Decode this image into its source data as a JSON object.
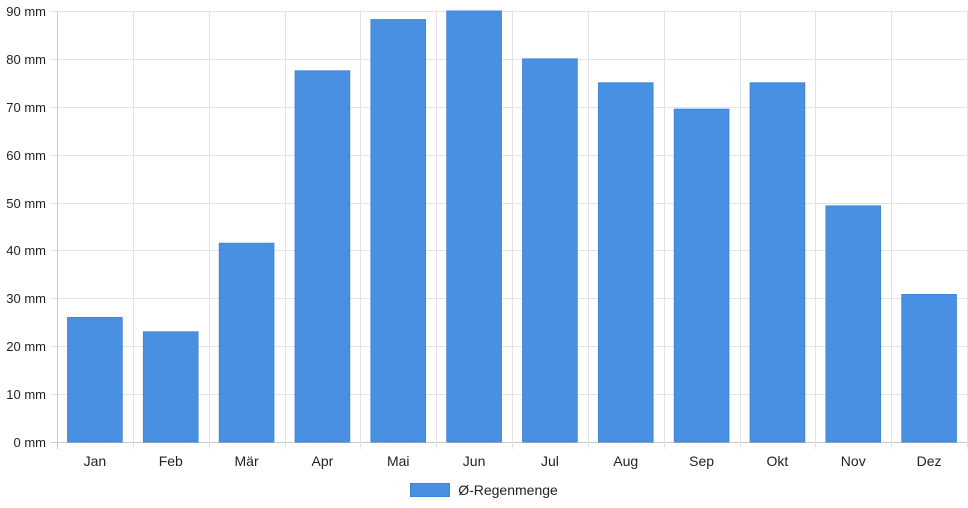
{
  "colors": {
    "bar": "#4a90e2",
    "bar_border": "#4185d6",
    "grid": "#e3e3e3",
    "axis": "#c8c8c8",
    "text": "#222222"
  },
  "chart_data": {
    "type": "bar",
    "title": "",
    "xlabel": "",
    "ylabel": "",
    "categories": [
      "Jan",
      "Feb",
      "Mär",
      "Apr",
      "Mai",
      "Jun",
      "Jul",
      "Aug",
      "Sep",
      "Okt",
      "Nov",
      "Dez"
    ],
    "series": [
      {
        "name": "Ø-Regenmenge",
        "values": [
          26,
          23,
          41.5,
          77.5,
          88.2,
          90,
          80,
          75,
          69.5,
          75,
          49.3,
          30.8
        ]
      }
    ],
    "ylim": [
      0,
      90
    ],
    "yticks": [
      0,
      10,
      20,
      30,
      40,
      50,
      60,
      70,
      80,
      90
    ],
    "ytick_suffix": " mm",
    "ytick_labels": [
      "0 mm",
      "10 mm",
      "20 mm",
      "30 mm",
      "40 mm",
      "50 mm",
      "60 mm",
      "70 mm",
      "80 mm",
      "90 mm"
    ],
    "grid": true,
    "legend_position": "bottom-center"
  }
}
